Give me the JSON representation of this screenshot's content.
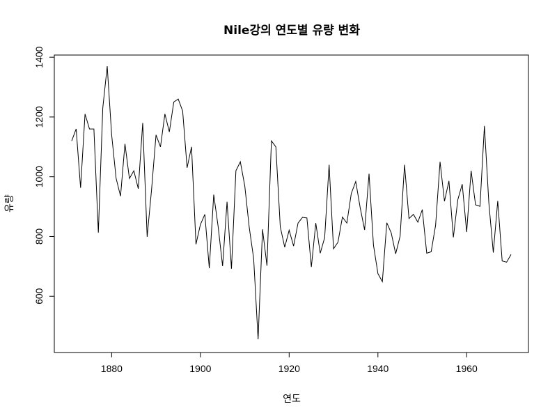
{
  "chart_data": {
    "type": "line",
    "title": "Nile강의 연도별 유량 변화",
    "xlabel": "연도",
    "ylabel": "유량",
    "xlim": [
      1871,
      1970
    ],
    "ylim": [
      456,
      1370
    ],
    "xticks": [
      1880,
      1900,
      1920,
      1940,
      1960
    ],
    "yticks": [
      600,
      800,
      1000,
      1200,
      1400
    ],
    "grid": false,
    "line_color": "#000000",
    "series": [
      {
        "x": [
          1871,
          1872,
          1873,
          1874,
          1875,
          1876,
          1877,
          1878,
          1879,
          1880,
          1881,
          1882,
          1883,
          1884,
          1885,
          1886,
          1887,
          1888,
          1889,
          1890,
          1891,
          1892,
          1893,
          1894,
          1895,
          1896,
          1897,
          1898,
          1899,
          1900,
          1901,
          1902,
          1903,
          1904,
          1905,
          1906,
          1907,
          1908,
          1909,
          1910,
          1911,
          1912,
          1913,
          1914,
          1915,
          1916,
          1917,
          1918,
          1919,
          1920,
          1921,
          1922,
          1923,
          1924,
          1925,
          1926,
          1927,
          1928,
          1929,
          1930,
          1931,
          1932,
          1933,
          1934,
          1935,
          1936,
          1937,
          1938,
          1939,
          1940,
          1941,
          1942,
          1943,
          1944,
          1945,
          1946,
          1947,
          1948,
          1949,
          1950,
          1951,
          1952,
          1953,
          1954,
          1955,
          1956,
          1957,
          1958,
          1959,
          1960,
          1961,
          1962,
          1963,
          1964,
          1965,
          1966,
          1967,
          1968,
          1969,
          1970
        ],
        "values": [
          1120,
          1160,
          963,
          1210,
          1160,
          1160,
          813,
          1230,
          1370,
          1140,
          995,
          935,
          1110,
          994,
          1020,
          960,
          1180,
          799,
          958,
          1140,
          1100,
          1210,
          1150,
          1250,
          1260,
          1220,
          1030,
          1100,
          774,
          840,
          874,
          694,
          940,
          833,
          701,
          916,
          692,
          1020,
          1050,
          969,
          831,
          726,
          456,
          824,
          702,
          1120,
          1100,
          832,
          764,
          821,
          768,
          845,
          864,
          862,
          698,
          845,
          744,
          796,
          1040,
          759,
          781,
          865,
          845,
          944,
          984,
          897,
          822,
          1010,
          771,
          676,
          649,
          846,
          812,
          742,
          801,
          1040,
          860,
          874,
          848,
          890,
          744,
          749,
          838,
          1050,
          918,
          986,
          797,
          923,
          975,
          815,
          1020,
          906,
          901,
          1170,
          912,
          746,
          919,
          718,
          714,
          740
        ]
      }
    ]
  }
}
